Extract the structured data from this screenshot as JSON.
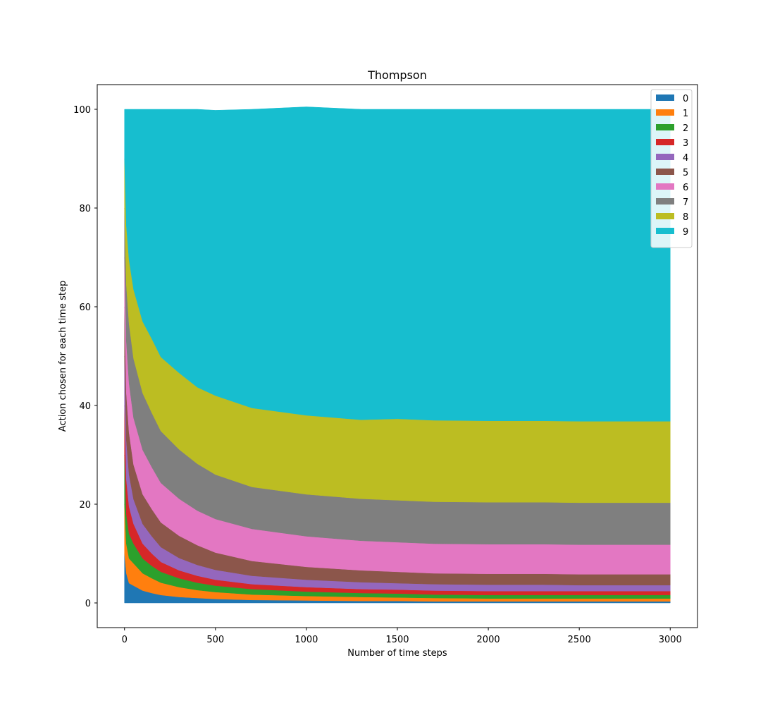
{
  "chart_data": {
    "type": "area",
    "stacked": true,
    "title": "Thompson",
    "xlabel": "Number of time steps",
    "ylabel": "Action chosen for each time step",
    "xlim": [
      -150,
      3150
    ],
    "ylim": [
      -5,
      105
    ],
    "xticks": [
      0,
      500,
      1000,
      1500,
      2000,
      2500,
      3000
    ],
    "yticks": [
      0,
      20,
      40,
      60,
      80,
      100
    ],
    "legend_position": "top-right",
    "x": [
      0,
      10,
      25,
      50,
      100,
      150,
      200,
      300,
      400,
      500,
      700,
      1000,
      1300,
      1500,
      1700,
      2000,
      2300,
      2500,
      2700,
      3000
    ],
    "series": [
      {
        "name": "0",
        "color": "#1f77b4",
        "values": [
          10,
          6,
          4,
          3.5,
          2.5,
          2,
          1.6,
          1.2,
          1,
          0.8,
          0.6,
          0.5,
          0.4,
          0.4,
          0.3,
          0.3,
          0.3,
          0.3,
          0.3,
          0.3
        ]
      },
      {
        "name": "1",
        "color": "#ff7f0e",
        "values": [
          10,
          6,
          5,
          4.5,
          3.5,
          3,
          2.5,
          2,
          1.6,
          1.4,
          1.1,
          0.9,
          0.8,
          0.7,
          0.7,
          0.6,
          0.6,
          0.6,
          0.6,
          0.6
        ]
      },
      {
        "name": "2",
        "color": "#2ca02c",
        "values": [
          10,
          6,
          5,
          4,
          3,
          2.5,
          2.2,
          1.8,
          1.5,
          1.3,
          1.1,
          0.9,
          0.8,
          0.8,
          0.7,
          0.7,
          0.7,
          0.7,
          0.7,
          0.7
        ]
      },
      {
        "name": "3",
        "color": "#d62728",
        "values": [
          10,
          7,
          5.5,
          4,
          3,
          2.5,
          2,
          1.6,
          1.4,
          1.2,
          1,
          0.9,
          0.8,
          0.8,
          0.8,
          0.8,
          0.8,
          0.8,
          0.8,
          0.8
        ]
      },
      {
        "name": "4",
        "color": "#9467bd",
        "values": [
          10,
          8,
          6.5,
          5,
          4,
          3.5,
          3,
          2.5,
          2.2,
          2,
          1.7,
          1.5,
          1.4,
          1.3,
          1.3,
          1.3,
          1.3,
          1.2,
          1.2,
          1.2
        ]
      },
      {
        "name": "5",
        "color": "#8c564b",
        "values": [
          10,
          9.5,
          8.5,
          7,
          6,
          5.5,
          5,
          4.5,
          4,
          3.5,
          3,
          2.6,
          2.4,
          2.3,
          2.2,
          2.2,
          2.2,
          2.2,
          2.2,
          2.2
        ]
      },
      {
        "name": "6",
        "color": "#e377c2",
        "values": [
          10,
          10.5,
          10,
          9.5,
          9,
          8.5,
          8,
          7.5,
          7,
          6.8,
          6.5,
          6.2,
          6,
          6,
          6,
          6,
          6,
          6,
          6,
          6
        ]
      },
      {
        "name": "7",
        "color": "#7f7f7f",
        "values": [
          10,
          11.5,
          12,
          12,
          11.5,
          11,
          10.5,
          10,
          9.5,
          9,
          8.5,
          8.5,
          8.5,
          8.5,
          8.5,
          8.5,
          8.5,
          8.5,
          8.5,
          8.5
        ]
      },
      {
        "name": "8",
        "color": "#bcbd22",
        "values": [
          10,
          12,
          13,
          14,
          14.5,
          15,
          15,
          15.5,
          15.5,
          16,
          16,
          16,
          16,
          16.5,
          16.5,
          16.5,
          16.5,
          16.5,
          16.5,
          16.5
        ]
      },
      {
        "name": "9",
        "color": "#17becf",
        "values": [
          10,
          23.5,
          30.5,
          36.5,
          43,
          46.5,
          50.2,
          53.4,
          56.3,
          57.8,
          60.5,
          62.5,
          62.9,
          62.7,
          63,
          63.1,
          63.1,
          63.2,
          63.2,
          63.2
        ]
      }
    ]
  }
}
